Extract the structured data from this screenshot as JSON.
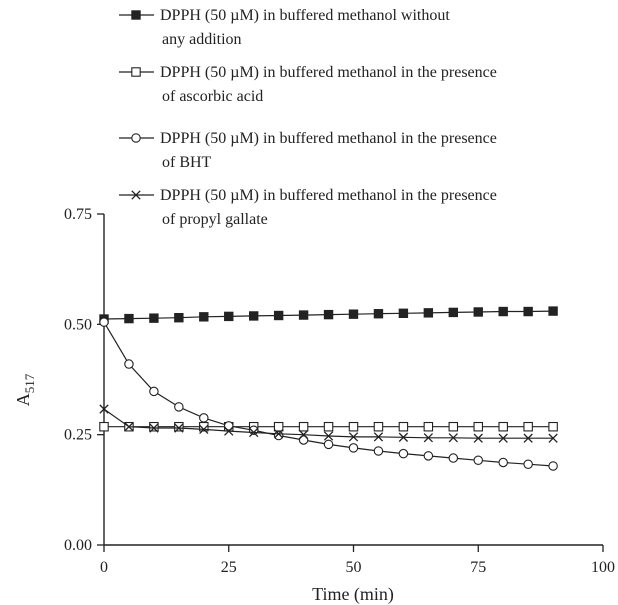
{
  "chart_data": {
    "type": "line",
    "xlabel": "Time (min)",
    "ylabel": "A",
    "ylabel_sub": "517",
    "xlim": [
      0,
      100
    ],
    "ylim": [
      0.0,
      0.75
    ],
    "x_ticks": [
      0,
      25,
      50,
      75,
      100
    ],
    "x_tick_labels": [
      "0",
      "25",
      "50",
      "75",
      "100"
    ],
    "y_ticks": [
      0.0,
      0.25,
      0.5,
      0.75
    ],
    "y_tick_labels": [
      "0.00",
      "0.25",
      "0.50",
      "0.75"
    ],
    "grid": false,
    "legend_position": "top",
    "x": [
      0,
      5,
      10,
      15,
      20,
      25,
      30,
      35,
      40,
      45,
      50,
      55,
      60,
      65,
      70,
      75,
      80,
      85,
      90
    ],
    "series": [
      {
        "name_lines": [
          "DPPH (50 µM) in buffered methanol without",
          "any addition"
        ],
        "marker": "filled-square",
        "values": [
          0.512,
          0.513,
          0.514,
          0.515,
          0.517,
          0.518,
          0.519,
          0.52,
          0.521,
          0.522,
          0.523,
          0.524,
          0.525,
          0.526,
          0.527,
          0.528,
          0.529,
          0.529,
          0.53
        ]
      },
      {
        "name_lines": [
          "DPPH (50 µM) in buffered methanol in the presence",
          "of ascorbic acid"
        ],
        "marker": "open-square",
        "values": [
          0.268,
          0.268,
          0.268,
          0.268,
          0.268,
          0.268,
          0.268,
          0.268,
          0.268,
          0.268,
          0.268,
          0.268,
          0.268,
          0.268,
          0.268,
          0.268,
          0.268,
          0.268,
          0.268
        ]
      },
      {
        "name_lines": [
          "DPPH (50 µM) in buffered methanol in the presence",
          "of BHT"
        ],
        "marker": "open-circle",
        "values": [
          0.505,
          0.41,
          0.348,
          0.313,
          0.288,
          0.27,
          0.26,
          0.248,
          0.238,
          0.228,
          0.22,
          0.213,
          0.207,
          0.202,
          0.197,
          0.192,
          0.187,
          0.183,
          0.179
        ]
      },
      {
        "name_lines": [
          "DPPH (50 µM) in buffered methanol in the presence",
          "of propyl gallate"
        ],
        "marker": "cross",
        "values": [
          0.308,
          0.268,
          0.265,
          0.265,
          0.262,
          0.258,
          0.255,
          0.252,
          0.25,
          0.247,
          0.245,
          0.245,
          0.244,
          0.243,
          0.243,
          0.242,
          0.242,
          0.242,
          0.242
        ]
      }
    ]
  }
}
